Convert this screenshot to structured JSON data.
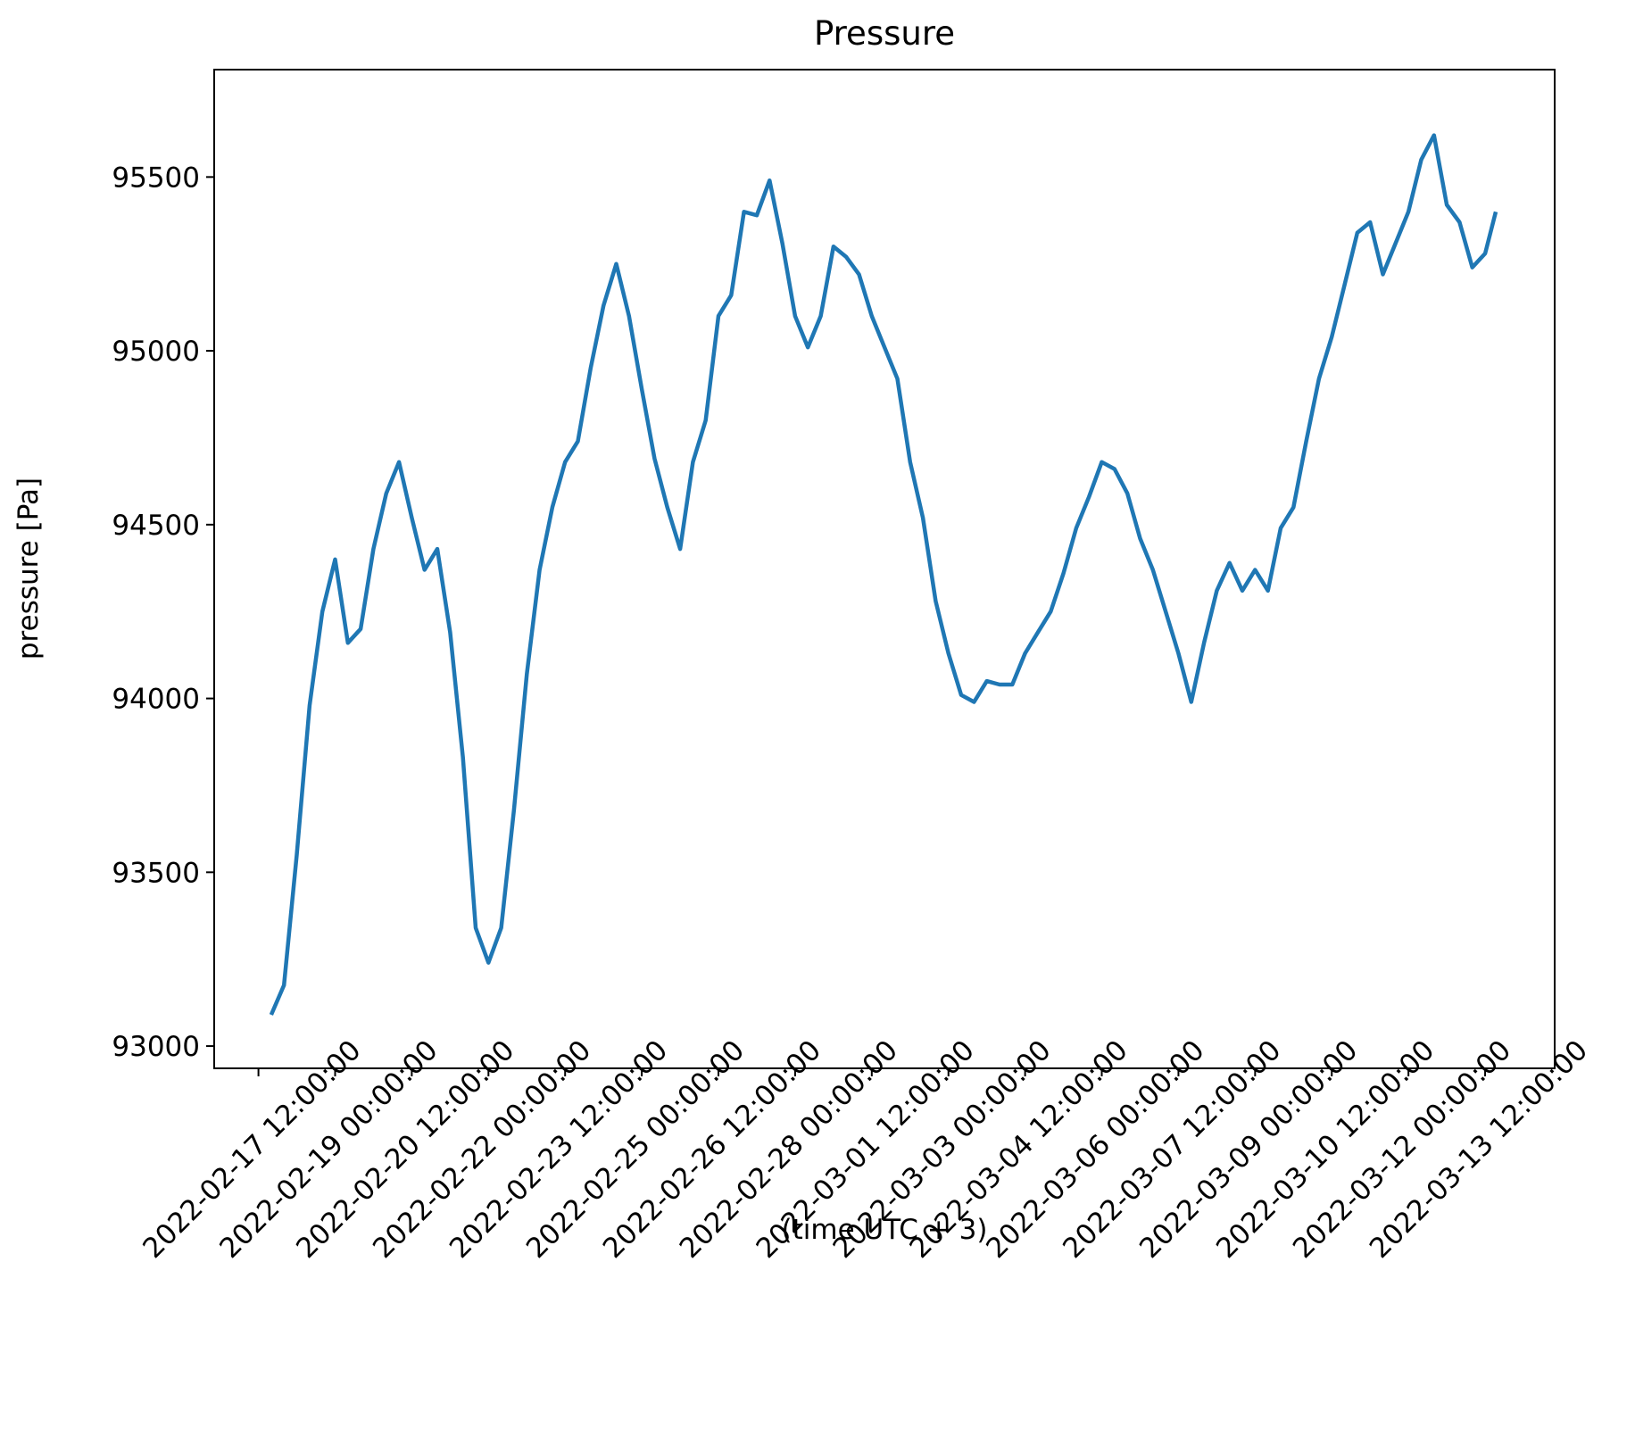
{
  "chart_data": {
    "type": "line",
    "title": "Pressure",
    "xlabel": "(time UTC + 3)",
    "ylabel": "pressure [Pa]",
    "x": [
      "2022-02-17 18:00:00",
      "2022-02-18 00:00:00",
      "2022-02-18 06:00:00",
      "2022-02-18 12:00:00",
      "2022-02-18 18:00:00",
      "2022-02-19 00:00:00",
      "2022-02-19 06:00:00",
      "2022-02-19 12:00:00",
      "2022-02-19 18:00:00",
      "2022-02-20 00:00:00",
      "2022-02-20 06:00:00",
      "2022-02-20 12:00:00",
      "2022-02-20 18:00:00",
      "2022-02-21 00:00:00",
      "2022-02-21 06:00:00",
      "2022-02-21 12:00:00",
      "2022-02-21 18:00:00",
      "2022-02-22 00:00:00",
      "2022-02-22 06:00:00",
      "2022-02-22 12:00:00",
      "2022-02-22 18:00:00",
      "2022-02-23 00:00:00",
      "2022-02-23 06:00:00",
      "2022-02-23 12:00:00",
      "2022-02-23 18:00:00",
      "2022-02-24 00:00:00",
      "2022-02-24 06:00:00",
      "2022-02-24 12:00:00",
      "2022-02-24 18:00:00",
      "2022-02-25 00:00:00",
      "2022-02-25 06:00:00",
      "2022-02-25 12:00:00",
      "2022-02-25 18:00:00",
      "2022-02-26 00:00:00",
      "2022-02-26 06:00:00",
      "2022-02-26 12:00:00",
      "2022-02-26 18:00:00",
      "2022-02-27 00:00:00",
      "2022-02-27 06:00:00",
      "2022-02-27 12:00:00",
      "2022-02-27 18:00:00",
      "2022-02-28 00:00:00",
      "2022-02-28 06:00:00",
      "2022-02-28 12:00:00",
      "2022-02-28 18:00:00",
      "2022-03-01 00:00:00",
      "2022-03-01 06:00:00",
      "2022-03-01 12:00:00",
      "2022-03-01 18:00:00",
      "2022-03-02 00:00:00",
      "2022-03-02 06:00:00",
      "2022-03-02 12:00:00",
      "2022-03-02 18:00:00",
      "2022-03-03 00:00:00",
      "2022-03-03 06:00:00",
      "2022-03-03 12:00:00",
      "2022-03-03 18:00:00",
      "2022-03-04 00:00:00",
      "2022-03-04 06:00:00",
      "2022-03-04 12:00:00",
      "2022-03-04 18:00:00",
      "2022-03-05 00:00:00",
      "2022-03-05 06:00:00",
      "2022-03-05 12:00:00",
      "2022-03-05 18:00:00",
      "2022-03-06 00:00:00",
      "2022-03-06 06:00:00",
      "2022-03-06 12:00:00",
      "2022-03-06 18:00:00",
      "2022-03-07 00:00:00",
      "2022-03-07 06:00:00",
      "2022-03-07 12:00:00",
      "2022-03-07 18:00:00",
      "2022-03-08 00:00:00",
      "2022-03-08 06:00:00",
      "2022-03-08 12:00:00",
      "2022-03-08 18:00:00",
      "2022-03-09 00:00:00",
      "2022-03-09 06:00:00",
      "2022-03-09 12:00:00",
      "2022-03-09 18:00:00",
      "2022-03-10 00:00:00",
      "2022-03-10 06:00:00",
      "2022-03-10 12:00:00",
      "2022-03-10 18:00:00",
      "2022-03-11 00:00:00",
      "2022-03-11 06:00:00",
      "2022-03-11 12:00:00",
      "2022-03-11 18:00:00",
      "2022-03-12 00:00:00",
      "2022-03-12 06:00:00",
      "2022-03-12 12:00:00",
      "2022-03-12 18:00:00",
      "2022-03-13 00:00:00",
      "2022-03-13 06:00:00",
      "2022-03-13 12:00:00",
      "2022-03-13 17:00:00"
    ],
    "series": [
      {
        "color": "#1f77b4",
        "values": [
          93090,
          93175,
          93550,
          93980,
          94250,
          94400,
          94160,
          94200,
          94430,
          94590,
          94680,
          94520,
          94370,
          94430,
          94190,
          93830,
          93340,
          93240,
          93340,
          93680,
          94070,
          94370,
          94550,
          94680,
          94740,
          94950,
          95130,
          95250,
          95100,
          94890,
          94690,
          94550,
          94430,
          94680,
          94800,
          95100,
          95160,
          95400,
          95390,
          95490,
          95310,
          95100,
          95010,
          95100,
          95300,
          95270,
          95220,
          95100,
          95010,
          94920,
          94680,
          94520,
          94280,
          94130,
          94010,
          93990,
          94050,
          94040,
          94040,
          94130,
          94190,
          94250,
          94360,
          94490,
          94580,
          94680,
          94660,
          94590,
          94460,
          94370,
          94250,
          94130,
          93990,
          94160,
          94310,
          94390,
          94310,
          94370,
          94310,
          94490,
          94550,
          94740,
          94920,
          95040,
          95190,
          95340,
          95370,
          95220,
          95310,
          95400,
          95550,
          95620,
          95420,
          95370,
          95240,
          95280,
          95400
        ]
      }
    ],
    "xlim": [
      "2022-02-16 15:13:00",
      "2022-03-14 20:40:00"
    ],
    "xticks": [
      "2022-02-17 12:00:00",
      "2022-02-19 00:00:00",
      "2022-02-20 12:00:00",
      "2022-02-22 00:00:00",
      "2022-02-23 12:00:00",
      "2022-02-25 00:00:00",
      "2022-02-26 12:00:00",
      "2022-02-28 00:00:00",
      "2022-03-01 12:00:00",
      "2022-03-03 00:00:00",
      "2022-03-04 12:00:00",
      "2022-03-06 00:00:00",
      "2022-03-07 12:00:00",
      "2022-03-09 00:00:00",
      "2022-03-10 12:00:00",
      "2022-03-12 00:00:00",
      "2022-03-13 12:00:00"
    ],
    "ylim": [
      92936,
      95809
    ],
    "yticks": [
      93000,
      93500,
      94000,
      94500,
      95000,
      95500
    ],
    "grid": false
  }
}
